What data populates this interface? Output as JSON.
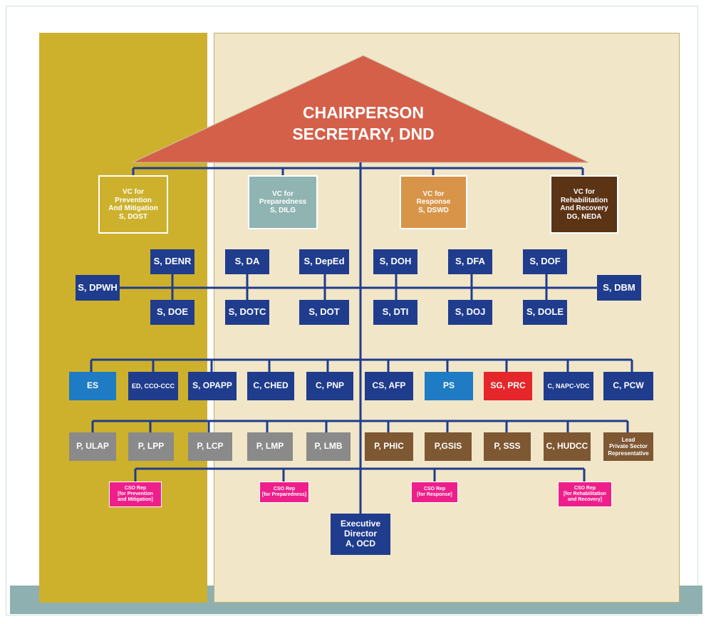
{
  "roof": {
    "line1": "CHAIRPERSON",
    "line2": "SECRETARY, DND"
  },
  "vice_chairs": [
    {
      "text": "VC for\nPrevention\nAnd Mitigation\nS, DOST"
    },
    {
      "text": "VC for\nPreparedness\nS, DILG"
    },
    {
      "text": "VC for\nResponse\nS, DSWD"
    },
    {
      "text": "VC for\nRehabilitation\nAnd Recovery\nDG, NEDA"
    }
  ],
  "secretaries": {
    "top": [
      "S, DENR",
      "S, DA",
      "S, DepEd",
      "S, DOH",
      "S, DFA",
      "S, DOF"
    ],
    "bottom": [
      "S, DOE",
      "S, DOTC",
      "S, DOT",
      "S, DTI",
      "S, DOJ",
      "S, DOLE"
    ],
    "left": "S, DPWH",
    "right": "S, DBM"
  },
  "row_agencies": [
    "ES",
    "ED, CCO-CCC",
    "S, OPAPP",
    "C, CHED",
    "C, PNP",
    "CS, AFP",
    "PS",
    "SG, PRC",
    "C, NAPC-VDC",
    "C, PCW"
  ],
  "row_others": [
    "P, ULAP",
    "P, LPP",
    "P, LCP",
    "P, LMP",
    "P, LMB",
    "P, PHIC",
    "P,GSIS",
    "P, SSS",
    "C, HUDCC",
    "Lead\nPrivate Sector\nRepresentative"
  ],
  "cso_reps": [
    "CSO Rep\n[for Prevention\nand Mitigation]",
    "CSO Rep\n[for Preparedness]",
    "CSO Rep\n[for Response]",
    "CSO Rep\n[for Rehabilitation\nand Recovery]"
  ],
  "executive": "Executive\nDirector\nA, OCD",
  "colors": {
    "navy": "#1f3c8d",
    "roof": "#d4604a",
    "left_panel": "#cdb12d",
    "right_panel": "#f1e6c8",
    "blue": "#1e7bc4",
    "red": "#e5262a",
    "gray": "#8a8a8a",
    "brown": "#7e5733",
    "pink": "#ee1f8b"
  }
}
